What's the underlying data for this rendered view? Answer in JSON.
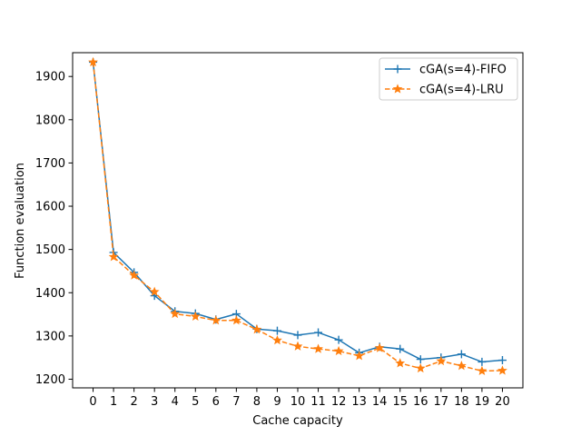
{
  "chart_data": {
    "type": "line",
    "x": [
      0,
      1,
      2,
      3,
      4,
      5,
      6,
      7,
      8,
      9,
      10,
      11,
      12,
      13,
      14,
      15,
      16,
      17,
      18,
      19,
      20
    ],
    "series": [
      {
        "name": "cGA(s=4)-FIFO",
        "color": "#1f77b4",
        "line_style": "solid",
        "marker": "plus",
        "values": [
          1933,
          1493,
          1447,
          1393,
          1357,
          1352,
          1338,
          1351,
          1316,
          1312,
          1302,
          1308,
          1291,
          1261,
          1275,
          1270,
          1246,
          1250,
          1258,
          1240,
          1244
        ]
      },
      {
        "name": "cGA(s=4)-LRU",
        "color": "#ff7f0e",
        "line_style": "dashed",
        "marker": "star",
        "values": [
          1933,
          1483,
          1440,
          1402,
          1351,
          1345,
          1336,
          1336,
          1315,
          1290,
          1276,
          1270,
          1265,
          1254,
          1272,
          1237,
          1225,
          1242,
          1231,
          1219,
          1220
        ]
      }
    ],
    "xlabel": "Cache capacity",
    "ylabel": "Function evaluation",
    "xlim": [
      -1,
      21
    ],
    "ylim": [
      1180,
      1955
    ],
    "xticks": [
      0,
      1,
      2,
      3,
      4,
      5,
      6,
      7,
      8,
      9,
      10,
      11,
      12,
      13,
      14,
      15,
      16,
      17,
      18,
      19,
      20
    ],
    "yticks": [
      1200,
      1300,
      1400,
      1500,
      1600,
      1700,
      1800,
      1900
    ],
    "grid": false,
    "legend_position": "top-right"
  }
}
